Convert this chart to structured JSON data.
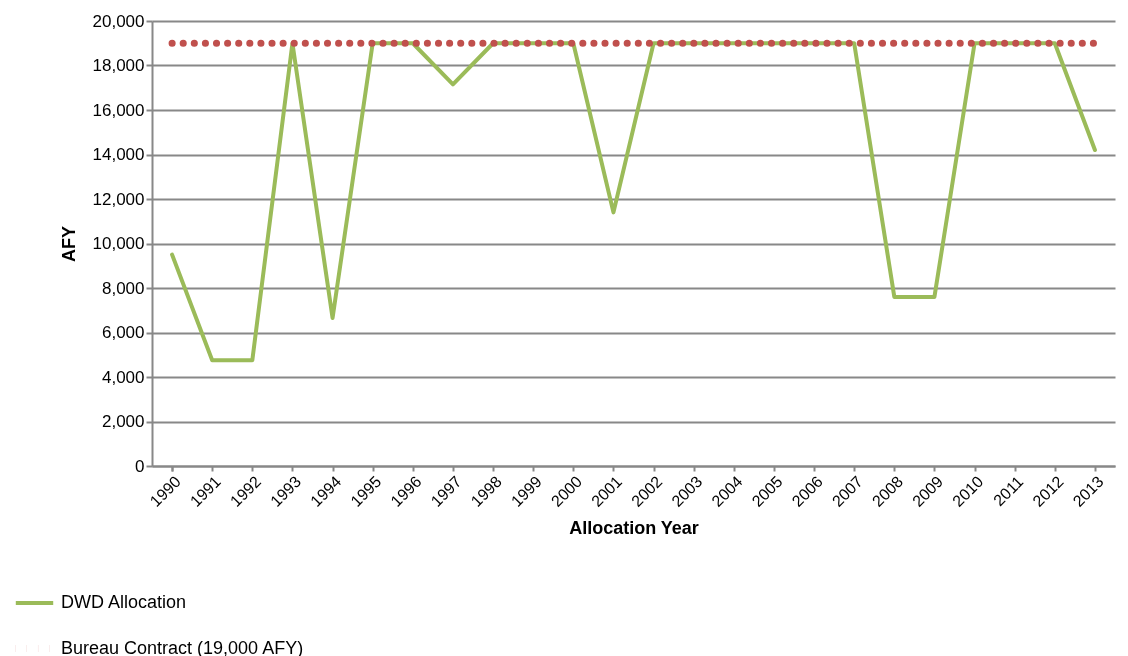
{
  "chart_data": {
    "type": "line",
    "xlabel": "Allocation Year",
    "ylabel": "AFY",
    "categories": [
      "1990",
      "1991",
      "1992",
      "1993",
      "1994",
      "1995",
      "1996",
      "1997",
      "1998",
      "1999",
      "2000",
      "2001",
      "2002",
      "2003",
      "2004",
      "2005",
      "2006",
      "2007",
      "2008",
      "2009",
      "2010",
      "2011",
      "2012",
      "2013"
    ],
    "series": [
      {
        "name": "DWD Allocation",
        "color": "#9bbb59",
        "line_style": "solid",
        "values": [
          9500,
          4750,
          4750,
          19000,
          6650,
          19000,
          19000,
          17150,
          19000,
          19000,
          19000,
          11400,
          19000,
          19000,
          19000,
          19000,
          19000,
          19000,
          7600,
          7600,
          19000,
          19000,
          19000,
          14200
        ]
      },
      {
        "name": "Bureau Contract  (19,000 AFY)",
        "color": "#c0504d",
        "line_style": "dotted",
        "values": [
          19000,
          19000,
          19000,
          19000,
          19000,
          19000,
          19000,
          19000,
          19000,
          19000,
          19000,
          19000,
          19000,
          19000,
          19000,
          19000,
          19000,
          19000,
          19000,
          19000,
          19000,
          19000,
          19000,
          19000
        ]
      }
    ],
    "ylim": [
      0,
      20000
    ],
    "yticks": [
      0,
      {
        "value": 2000,
        "label": "2,000"
      },
      {
        "value": 4000,
        "label": "4,000"
      },
      {
        "value": 6000,
        "label": "6,000"
      },
      {
        "value": 8000,
        "label": "8,000"
      },
      {
        "value": 10000,
        "label": "10,000"
      },
      {
        "value": 12000,
        "label": "12,000"
      },
      {
        "value": 14000,
        "label": "14,000"
      },
      {
        "value": 16000,
        "label": "16,000"
      },
      {
        "value": 18000,
        "label": "18,000"
      },
      {
        "value": 20000,
        "label": "20,000"
      }
    ],
    "grid": "y",
    "legend": "bottom left"
  }
}
